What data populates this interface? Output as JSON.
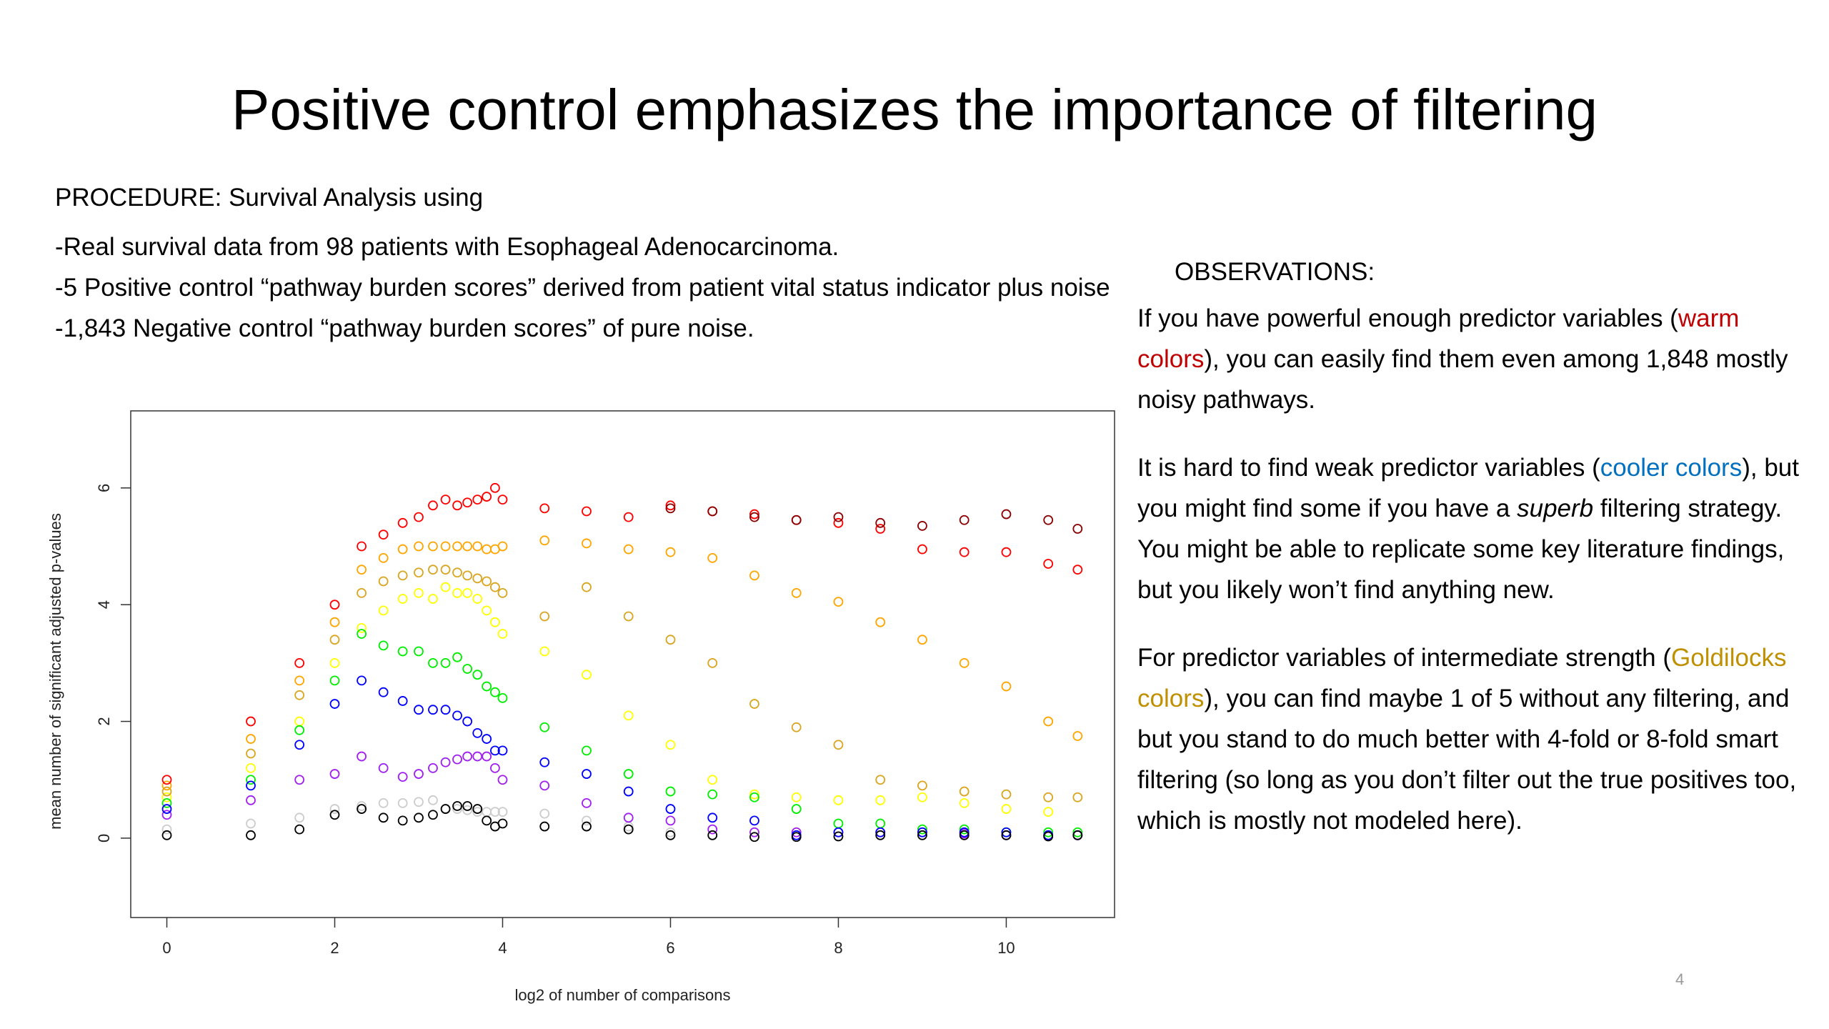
{
  "title": "Positive control emphasizes the importance of filtering",
  "procedure": {
    "heading": "PROCEDURE: Survival Analysis using",
    "items": [
      "-Real survival data from 98 patients with Esophageal Adenocarcinoma.",
      "-5 Positive control “pathway burden scores” derived from patient vital status indicator plus noise",
      "-1,843 Negative control “pathway burden scores” of pure noise."
    ]
  },
  "observations": {
    "heading": "OBSERVATIONS:",
    "paragraphs": [
      [
        {
          "text": "If you have powerful enough predictor variables ("
        },
        {
          "text": "warm colors",
          "color": "#c00000"
        },
        {
          "text": "), you can easily find them even among 1,848 mostly noisy pathways."
        }
      ],
      [
        {
          "text": "It is hard to find weak predictor variables ("
        },
        {
          "text": "cooler colors",
          "color": "#0070c0"
        },
        {
          "text": "), but you might find some if you have a "
        },
        {
          "text": "superb",
          "style": "italic"
        },
        {
          "text": " filtering strategy. You might be able to replicate some key literature findings, but you likely won’t find anything new."
        }
      ],
      [
        {
          "text": "For predictor variables of intermediate strength ("
        },
        {
          "text": "Goldilocks colors",
          "color": "#bf9000"
        },
        {
          "text": "), you can find maybe 1 of 5 without any filtering, and but you stand to do much better with 4-fold or 8-fold smart filtering (so long as you don’t filter out the true positives too, which is mostly not modeled here)."
        }
      ]
    ]
  },
  "page_number": "4",
  "chart_data": {
    "type": "scatter",
    "x_label": "log2 of number of comparisons",
    "y_label": "mean number of significant adjusted p-values",
    "xlim": [
      -0.43,
      11.29
    ],
    "ylim": [
      -1.36,
      7.32
    ],
    "xticks": [
      0,
      2,
      4,
      6,
      8,
      10
    ],
    "yticks": [
      0,
      2,
      4,
      6
    ],
    "x": [
      0,
      1,
      1.58,
      2,
      2.32,
      2.58,
      2.81,
      3,
      3.17,
      3.32,
      3.46,
      3.58,
      3.7,
      3.81,
      3.91,
      4,
      4.5,
      5,
      5.5,
      6,
      6.5,
      7,
      7.5,
      8,
      8.5,
      9,
      9.5,
      10,
      10.5,
      10.85
    ],
    "series": [
      {
        "color": "#cccccc",
        "values": [
          0.15,
          0.25,
          0.35,
          0.5,
          0.55,
          0.6,
          0.6,
          0.62,
          0.65,
          0.5,
          0.5,
          0.48,
          0.45,
          0.45,
          0.45,
          0.45,
          0.42,
          0.3,
          0.2,
          0.1,
          null,
          null,
          null,
          null,
          null,
          null,
          null,
          null,
          null,
          null
        ]
      },
      {
        "color": "#ffff00",
        "values": [
          0.7,
          1.2,
          2.0,
          3.0,
          3.6,
          3.9,
          4.1,
          4.2,
          4.1,
          4.3,
          4.2,
          4.2,
          4.1,
          3.9,
          3.7,
          3.5,
          3.2,
          2.8,
          2.1,
          1.6,
          1.0,
          0.75,
          0.7,
          0.65,
          0.65,
          0.7,
          0.6,
          0.5,
          0.45,
          null
        ]
      },
      {
        "color": "#daa520",
        "values": [
          0.8,
          1.45,
          2.45,
          3.4,
          4.2,
          4.4,
          4.5,
          4.55,
          4.6,
          4.6,
          4.55,
          4.5,
          4.45,
          4.4,
          4.3,
          4.2,
          3.8,
          4.3,
          3.8,
          3.4,
          3.0,
          2.3,
          1.9,
          1.6,
          1.0,
          0.9,
          0.8,
          0.75,
          0.7,
          0.7
        ]
      },
      {
        "color": "#ffa500",
        "values": [
          0.9,
          1.7,
          2.7,
          3.7,
          4.6,
          4.8,
          4.95,
          5.0,
          5.0,
          5.0,
          5.0,
          5.0,
          5.0,
          4.95,
          4.95,
          5.0,
          5.1,
          5.05,
          4.95,
          4.9,
          4.8,
          4.5,
          4.2,
          4.05,
          3.7,
          3.4,
          3.0,
          2.6,
          2.0,
          1.75
        ]
      },
      {
        "color": "#ff0000",
        "values": [
          1.0,
          2.0,
          3.0,
          4.0,
          5.0,
          5.2,
          5.4,
          5.5,
          5.7,
          5.8,
          5.7,
          5.75,
          5.8,
          5.85,
          6.0,
          5.8,
          5.65,
          5.6,
          5.5,
          5.7,
          5.6,
          5.55,
          5.45,
          5.4,
          5.3,
          4.95,
          4.9,
          4.9,
          4.7,
          4.6
        ]
      },
      {
        "color": "#8b0000",
        "values": [
          null,
          null,
          null,
          null,
          null,
          null,
          null,
          null,
          null,
          null,
          null,
          null,
          null,
          null,
          null,
          null,
          null,
          null,
          null,
          5.65,
          5.6,
          5.5,
          5.45,
          5.5,
          5.4,
          5.35,
          5.45,
          5.55,
          5.45,
          5.3
        ]
      },
      {
        "color": "#00ee00",
        "values": [
          0.6,
          1.0,
          1.85,
          2.7,
          3.5,
          3.3,
          3.2,
          3.2,
          3.0,
          3.0,
          3.1,
          2.9,
          2.8,
          2.6,
          2.5,
          2.4,
          1.9,
          1.5,
          1.1,
          0.8,
          0.75,
          0.7,
          0.5,
          0.25,
          0.25,
          0.15,
          0.15,
          0.1,
          0.1,
          0.1
        ]
      },
      {
        "color": "#a020f0",
        "values": [
          0.4,
          0.65,
          1.0,
          1.1,
          1.4,
          1.2,
          1.05,
          1.1,
          1.2,
          1.3,
          1.35,
          1.4,
          1.4,
          1.4,
          1.2,
          1.0,
          0.9,
          0.6,
          0.35,
          0.3,
          0.15,
          0.1,
          0.1,
          0.1,
          0.1,
          0.1,
          0.08,
          0.05,
          0.05,
          0.05
        ]
      },
      {
        "color": "#0000ff",
        "values": [
          0.5,
          0.9,
          1.6,
          2.3,
          2.7,
          2.5,
          2.35,
          2.2,
          2.2,
          2.2,
          2.1,
          2.0,
          1.8,
          1.7,
          1.5,
          1.5,
          1.3,
          1.1,
          0.8,
          0.5,
          0.35,
          0.3,
          0.05,
          0.1,
          0.1,
          0.1,
          0.1,
          0.1,
          0.05,
          0.05
        ]
      },
      {
        "color": "#000000",
        "values": [
          0.05,
          0.05,
          0.15,
          0.4,
          0.5,
          0.35,
          0.3,
          0.35,
          0.4,
          0.5,
          0.55,
          0.55,
          0.5,
          0.3,
          0.2,
          0.25,
          0.2,
          0.2,
          0.15,
          0.05,
          0.05,
          0.02,
          0.02,
          0.03,
          0.05,
          0.05,
          0.05,
          0.05,
          0.03,
          0.05
        ]
      }
    ]
  }
}
